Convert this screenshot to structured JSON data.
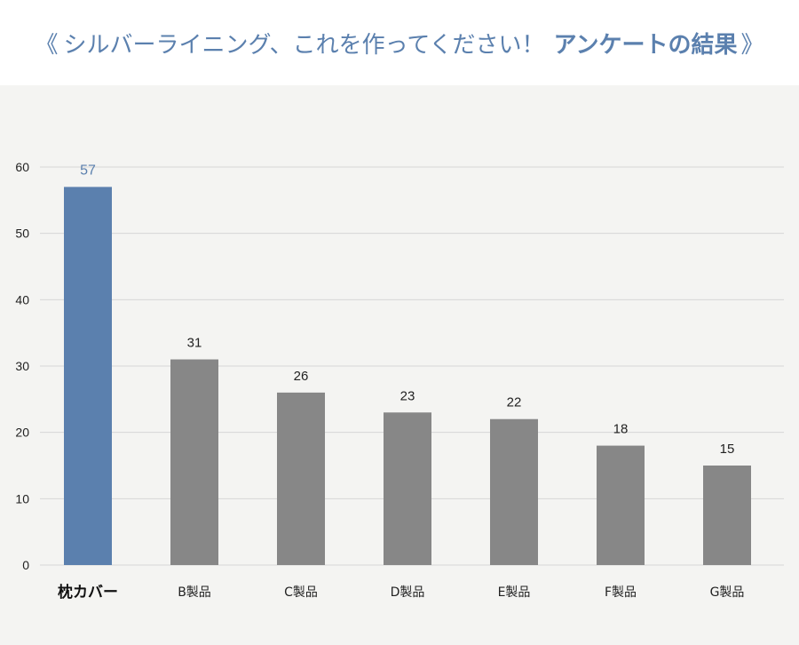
{
  "header": {
    "open_mark": "《",
    "title_regular": "シルバーライニング、これを作ってください！",
    "title_emphasis": "アンケートの結果",
    "close_mark": "》"
  },
  "chart_data": {
    "type": "bar",
    "categories": [
      "枕カバー",
      "B製品",
      "C製品",
      "D製品",
      "E製品",
      "F製品",
      "G製品"
    ],
    "values": [
      57,
      31,
      26,
      23,
      22,
      18,
      15
    ],
    "ylim": [
      0,
      60
    ],
    "yticks": [
      0,
      10,
      20,
      30,
      40,
      50,
      60
    ],
    "title": "",
    "xlabel": "",
    "ylabel": "",
    "grid": true,
    "legend": "none",
    "highlight_index": 0,
    "colors": {
      "highlight": "#5b80ae",
      "default": "#878787",
      "grid": "#d6d6d6",
      "background": "#f4f4f2"
    }
  }
}
